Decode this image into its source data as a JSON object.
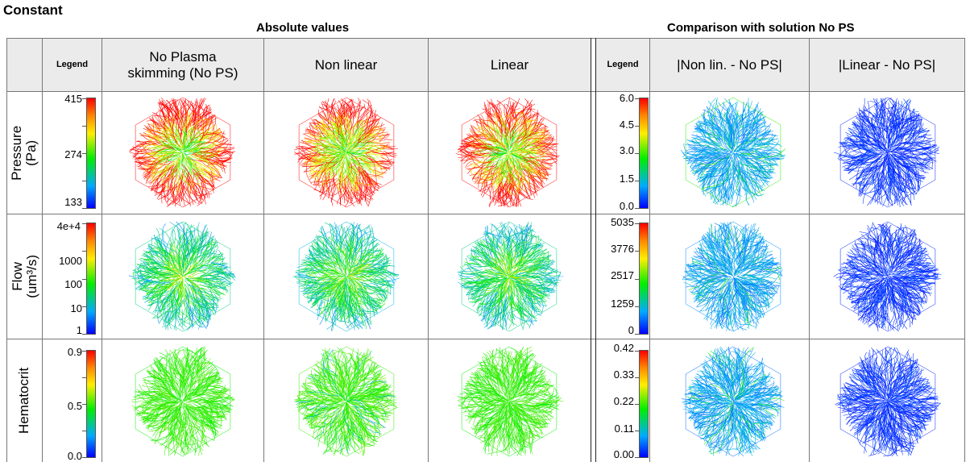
{
  "figure_title": "Constant",
  "sections": {
    "absolute": "Absolute values",
    "comparison": "Comparison with solution No PS"
  },
  "columns": {
    "legend": "Legend",
    "no_ps_line1": "No Plasma",
    "no_ps_line2": "skimming (No PS)",
    "non_linear": "Non linear",
    "linear": "Linear",
    "legend2": "Legend",
    "diff_nonlin": "|Non lin. - No PS|",
    "diff_linear": "|Linear - No PS|"
  },
  "rows": [
    {
      "label_line1": "Pressure",
      "label_line2": "(Pa)",
      "abs_ticks": [
        "415",
        "274",
        "133"
      ],
      "cmp_ticks": [
        "6.0",
        "4.5",
        "3.0",
        "1.5",
        "0.0"
      ]
    },
    {
      "label_line1": "Flow",
      "label_line2": "(um³/s)",
      "abs_ticks": [
        "4e+4",
        "1000",
        "100",
        "10",
        "1"
      ],
      "cmp_ticks": [
        "5035",
        "3776",
        "2517",
        "1259",
        "0"
      ]
    },
    {
      "label_line1": "Hematocrit",
      "label_line2": "",
      "abs_ticks": [
        "0.9",
        "0.5",
        "0.0"
      ],
      "cmp_ticks": [
        "0.42",
        "0.33",
        "0.22",
        "0.11",
        "0.00"
      ]
    }
  ],
  "colormap": {
    "low": "#0000ff",
    "mid": "#00ee00",
    "high": "#ff0000"
  },
  "icons": {
    "network_map": "hexagonal-vessel-network"
  }
}
